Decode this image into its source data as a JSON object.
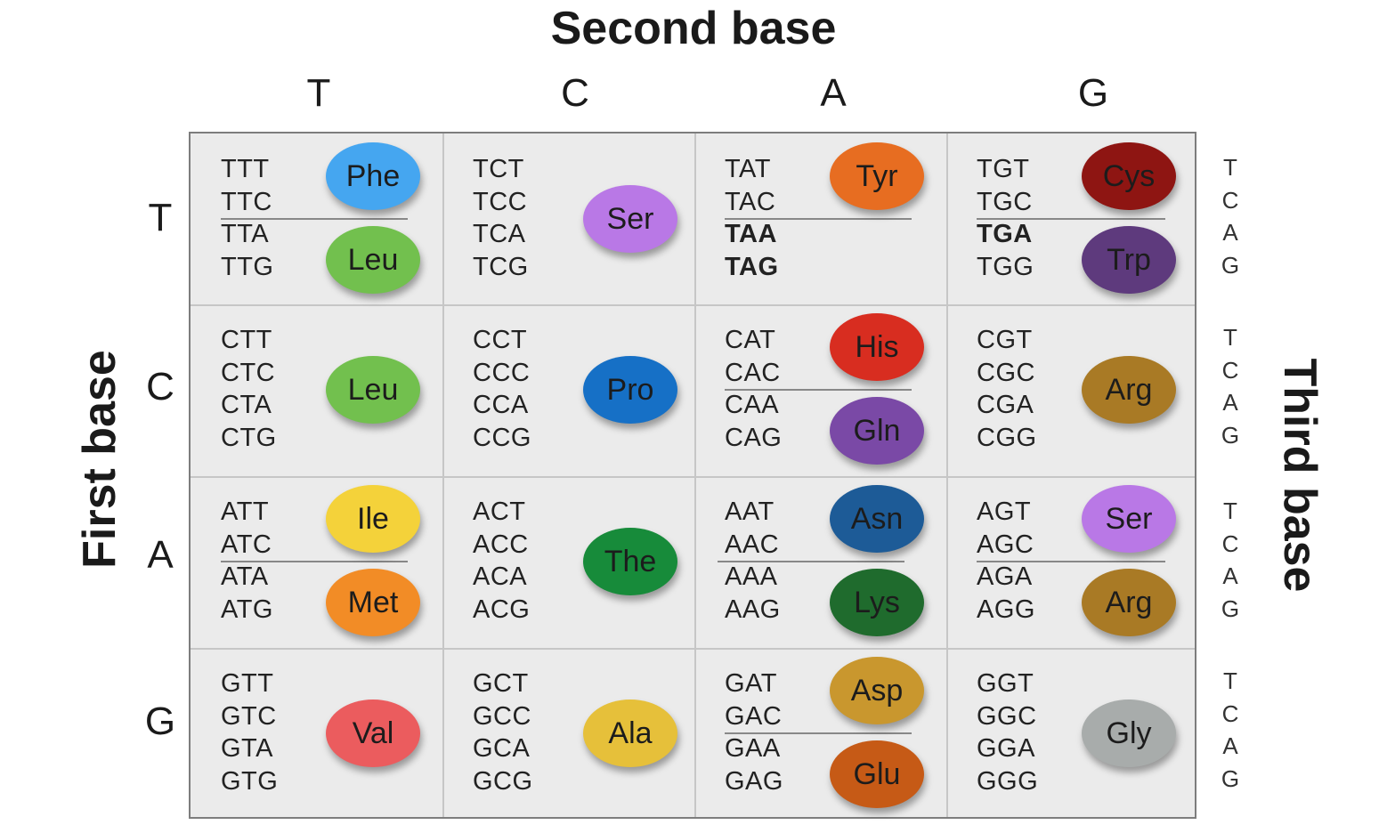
{
  "titles": {
    "second_base": "Second base",
    "first_base": "First base",
    "third_base": "Third base"
  },
  "second_base_labels": [
    "T",
    "C",
    "A",
    "G"
  ],
  "first_base_labels": [
    "T",
    "C",
    "A",
    "G"
  ],
  "third_base_labels": [
    "T",
    "C",
    "A",
    "G"
  ],
  "cells": [
    [
      {
        "codons": [
          "TTT",
          "TTC",
          "TTA",
          "TTG"
        ],
        "stop": [],
        "split": true,
        "amino_acids": [
          {
            "name": "Phe",
            "color": "#45a6f0",
            "slot": "top"
          },
          {
            "name": "Leu",
            "color": "#72c04e",
            "slot": "bottom"
          }
        ]
      },
      {
        "codons": [
          "TCT",
          "TCC",
          "TCA",
          "TCG"
        ],
        "stop": [],
        "split": false,
        "amino_acids": [
          {
            "name": "Ser",
            "color": "#b978e6",
            "slot": "mid"
          }
        ]
      },
      {
        "codons": [
          "TAT",
          "TAC",
          "TAA",
          "TAG"
        ],
        "stop": [
          2,
          3
        ],
        "split": true,
        "amino_acids": [
          {
            "name": "Tyr",
            "color": "#e76d21",
            "slot": "top"
          }
        ]
      },
      {
        "codons": [
          "TGT",
          "TGC",
          "TGA",
          "TGG"
        ],
        "stop": [
          2
        ],
        "split": true,
        "amino_acids": [
          {
            "name": "Cys",
            "color": "#8e1512",
            "slot": "top"
          },
          {
            "name": "Trp",
            "color": "#5e3a7d",
            "slot": "bottom"
          }
        ]
      }
    ],
    [
      {
        "codons": [
          "CTT",
          "CTC",
          "CTA",
          "CTG"
        ],
        "stop": [],
        "split": false,
        "amino_acids": [
          {
            "name": "Leu",
            "color": "#72c04e",
            "slot": "mid"
          }
        ]
      },
      {
        "codons": [
          "CCT",
          "CCC",
          "CCA",
          "CCG"
        ],
        "stop": [],
        "split": false,
        "amino_acids": [
          {
            "name": "Pro",
            "color": "#1670c6",
            "slot": "mid"
          }
        ]
      },
      {
        "codons": [
          "CAT",
          "CAC",
          "CAA",
          "CAG"
        ],
        "stop": [],
        "split": true,
        "amino_acids": [
          {
            "name": "His",
            "color": "#d82d20",
            "slot": "top"
          },
          {
            "name": "Gln",
            "color": "#7a49a6",
            "slot": "bottom"
          }
        ]
      },
      {
        "codons": [
          "CGT",
          "CGC",
          "CGA",
          "CGG"
        ],
        "stop": [],
        "split": false,
        "amino_acids": [
          {
            "name": "Arg",
            "color": "#a97a25",
            "slot": "mid"
          }
        ]
      }
    ],
    [
      {
        "codons": [
          "ATT",
          "ATC",
          "ATA",
          "ATG"
        ],
        "stop": [],
        "split": true,
        "amino_acids": [
          {
            "name": "Ile",
            "color": "#f4d23a",
            "slot": "top"
          },
          {
            "name": "Met",
            "color": "#f28c26",
            "slot": "bottom"
          }
        ]
      },
      {
        "codons": [
          "ACT",
          "ACC",
          "ACA",
          "ACG"
        ],
        "stop": [],
        "split": false,
        "amino_acids": [
          {
            "name": "The",
            "color": "#178b3a",
            "slot": "mid"
          }
        ]
      },
      {
        "codons": [
          "AAT",
          "AAC",
          "AAA",
          "AAG"
        ],
        "stop": [],
        "split": true,
        "amino_acids": [
          {
            "name": "Asn",
            "color": "#1d5b97",
            "slot": "top"
          },
          {
            "name": "Lys",
            "color": "#1f6b2d",
            "slot": "bottom"
          }
        ]
      },
      {
        "codons": [
          "AGT",
          "AGC",
          "AGA",
          "AGG"
        ],
        "stop": [],
        "split": true,
        "amino_acids": [
          {
            "name": "Ser",
            "color": "#b978e6",
            "slot": "top"
          },
          {
            "name": "Arg",
            "color": "#a97a25",
            "slot": "bottom"
          }
        ]
      }
    ],
    [
      {
        "codons": [
          "GTT",
          "GTC",
          "GTA",
          "GTG"
        ],
        "stop": [],
        "split": false,
        "amino_acids": [
          {
            "name": "Val",
            "color": "#eb5c5e",
            "slot": "mid"
          }
        ]
      },
      {
        "codons": [
          "GCT",
          "GCC",
          "GCA",
          "GCG"
        ],
        "stop": [],
        "split": false,
        "amino_acids": [
          {
            "name": "Ala",
            "color": "#e6c03a",
            "slot": "mid"
          }
        ]
      },
      {
        "codons": [
          "GAT",
          "GAC",
          "GAA",
          "GAG"
        ],
        "stop": [],
        "split": true,
        "amino_acids": [
          {
            "name": "Asp",
            "color": "#c9972e",
            "slot": "top"
          },
          {
            "name": "Glu",
            "color": "#c65a16",
            "slot": "bottom"
          }
        ]
      },
      {
        "codons": [
          "GGT",
          "GGC",
          "GGA",
          "GGG"
        ],
        "stop": [],
        "split": false,
        "amino_acids": [
          {
            "name": "Gly",
            "color": "#a8acab",
            "slot": "mid"
          }
        ]
      }
    ]
  ]
}
